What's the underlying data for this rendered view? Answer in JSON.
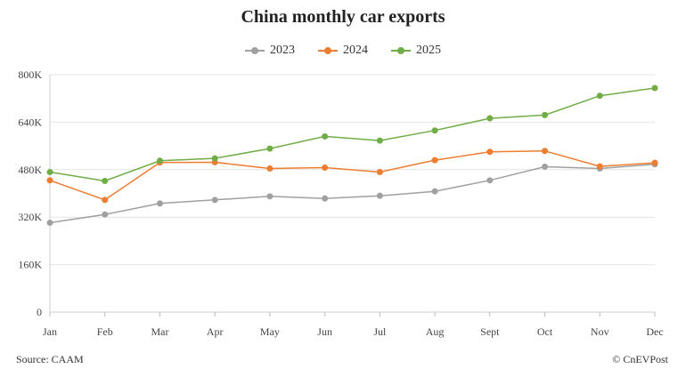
{
  "chart_data": {
    "type": "line",
    "title": "China monthly car exports",
    "xlabel": "",
    "ylabel": "",
    "categories": [
      "Jan",
      "Feb",
      "Mar",
      "Apr",
      "May",
      "Jun",
      "Jul",
      "Aug",
      "Sept",
      "Oct",
      "Nov",
      "Dec"
    ],
    "yticks": [
      0,
      160000,
      320000,
      480000,
      640000,
      800000
    ],
    "ytick_labels": [
      "0",
      "160K",
      "320K",
      "480K",
      "640K",
      "800K"
    ],
    "ylim": [
      0,
      800000
    ],
    "legend_position": "top-center",
    "grid": true,
    "series": [
      {
        "name": "2023",
        "color": "#a0a0a0",
        "values": [
          301000,
          329000,
          366000,
          378000,
          390000,
          383000,
          392000,
          407000,
          444000,
          490000,
          484000,
          498000
        ]
      },
      {
        "name": "2024",
        "color": "#ed7d31",
        "values": [
          444000,
          378000,
          504000,
          505000,
          484000,
          487000,
          472000,
          512000,
          540000,
          543000,
          491000,
          503000
        ]
      },
      {
        "name": "2025",
        "color": "#70ad47",
        "values": [
          472000,
          442000,
          510000,
          518000,
          551000,
          592000,
          578000,
          612000,
          653000,
          664000,
          729000,
          755000
        ]
      }
    ]
  },
  "footer": {
    "source": "Source: CAAM",
    "credit": "© CnEVPost"
  }
}
